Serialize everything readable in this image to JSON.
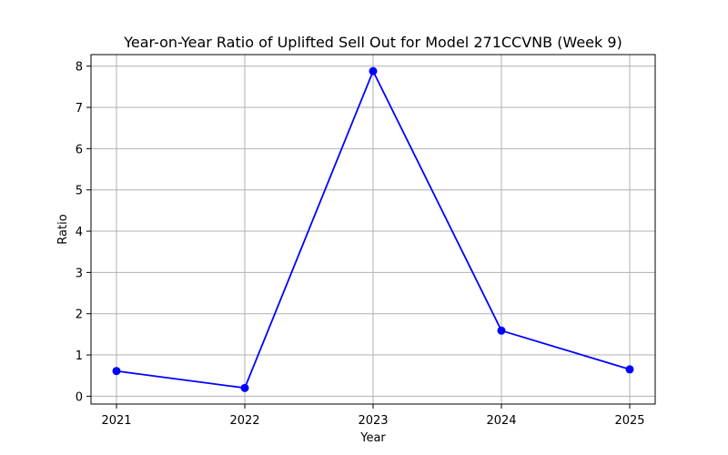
{
  "chart_data": {
    "type": "line",
    "title": "Year-on-Year Ratio of Uplifted Sell Out for Model 271CCVNB (Week 9)",
    "xlabel": "Year",
    "ylabel": "Ratio",
    "x": [
      "2021",
      "2022",
      "2023",
      "2024",
      "2025"
    ],
    "series": [
      {
        "values": [
          0.61,
          0.2,
          7.88,
          1.59,
          0.65
        ],
        "color": "#0000ff",
        "marker": "circle"
      }
    ],
    "yticks": [
      "0",
      "1",
      "2",
      "3",
      "4",
      "5",
      "6",
      "7",
      "8"
    ],
    "ylim": [
      -0.19,
      8.28
    ],
    "grid": true,
    "legend": "none"
  }
}
